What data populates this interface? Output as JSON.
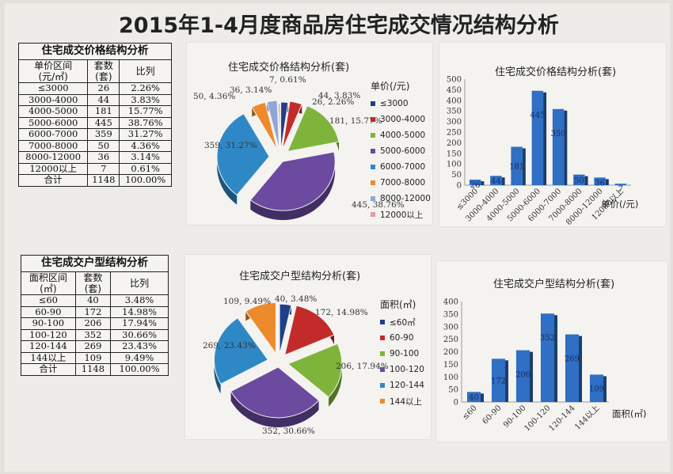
{
  "title": "2015年1-4月度商品房住宅成交情况结构分析",
  "tables": [
    {
      "title": "住宅成交价格结构分析",
      "headers": [
        [
          "单价区间",
          "(元/㎡)"
        ],
        [
          "套数",
          "(套)"
        ],
        [
          "比列",
          ""
        ]
      ],
      "rows": [
        [
          "≤3000",
          "26",
          "2.26%"
        ],
        [
          "3000-4000",
          "44",
          "3.83%"
        ],
        [
          "4000-5000",
          "181",
          "15.77%"
        ],
        [
          "5000-6000",
          "445",
          "38.76%"
        ],
        [
          "6000-7000",
          "359",
          "31.27%"
        ],
        [
          "7000-8000",
          "50",
          "4.36%"
        ],
        [
          "8000-12000",
          "36",
          "3.14%"
        ],
        [
          "12000以上",
          "7",
          "0.61%"
        ],
        [
          "合计",
          "1148",
          "100.00%"
        ]
      ]
    },
    {
      "title": "住宅成交户型结构分析",
      "headers": [
        [
          "面积区间",
          "(㎡)"
        ],
        [
          "套数",
          "(套)"
        ],
        [
          "比列",
          ""
        ]
      ],
      "rows": [
        [
          "≤60",
          "40",
          "3.48%"
        ],
        [
          "60-90",
          "172",
          "14.98%"
        ],
        [
          "90-100",
          "206",
          "17.94%"
        ],
        [
          "100-120",
          "352",
          "30.66%"
        ],
        [
          "120-144",
          "269",
          "23.43%"
        ],
        [
          "144以上",
          "109",
          "9.49%"
        ],
        [
          "合计",
          "1148",
          "100.00%"
        ]
      ]
    }
  ],
  "chart_data": [
    {
      "type": "pie",
      "title": "住宅成交价格结构分析(套)",
      "legend_title": "单价(/元)",
      "categories": [
        "≤3000",
        "3000-4000",
        "4000-5000",
        "5000-6000",
        "6000-7000",
        "7000-8000",
        "8000-12000",
        "12000以上"
      ],
      "values": [
        26,
        44,
        181,
        445,
        359,
        50,
        36,
        7
      ],
      "percent_labels": [
        "26, 2.26%",
        "44, 3.83%",
        "181, 15.77%",
        "445, 38.76%",
        "359, 31.27%",
        "50, 4.36%",
        "36, 3.14%",
        "7, 0.61%"
      ],
      "colors": [
        "#1f3f8a",
        "#c32b2b",
        "#7fb43b",
        "#6b4aa0",
        "#2f88c6",
        "#ec8a2c",
        "#8fa6d8",
        "#e39c9c"
      ],
      "legend": "right"
    },
    {
      "type": "bar",
      "title": "住宅成交价格结构分析(套)",
      "categories": [
        "≤3000",
        "3000-4000",
        "4000-5000",
        "5000-6000",
        "6000-7000",
        "7000-8000",
        "8000-12000",
        "12000以上"
      ],
      "values": [
        26,
        44,
        181,
        445,
        359,
        50,
        36,
        7
      ],
      "data_labels": [
        "26",
        "44",
        "181",
        "445",
        "359",
        "50",
        "36",
        "7"
      ],
      "xlabel": "单价(/元)",
      "ylim": [
        0,
        500
      ],
      "yticks": [
        0,
        50,
        100,
        150,
        200,
        250,
        300,
        350,
        400,
        450,
        500
      ],
      "color": "#2f6fc4"
    },
    {
      "type": "pie",
      "title": "住宅成交户型结构分析(套)",
      "legend_title": "面积(㎡)",
      "categories": [
        "≤60㎡",
        "60-90",
        "90-100",
        "100-120",
        "120-144",
        "144以上"
      ],
      "values": [
        40,
        172,
        206,
        352,
        269,
        109
      ],
      "percent_labels": [
        "40, 3.48%",
        "172, 14.98%",
        "206, 17.94%",
        "352, 30.66%",
        "269, 23.43%",
        "109, 9.49%"
      ],
      "colors": [
        "#1f3f8a",
        "#c32b2b",
        "#7fb43b",
        "#6b4aa0",
        "#2f88c6",
        "#ec8a2c"
      ],
      "legend": "right"
    },
    {
      "type": "bar",
      "title": "住宅成交户型结构分析(套)",
      "categories": [
        "≤60",
        "60-90",
        "90-100",
        "100-120",
        "120-144",
        "144以上"
      ],
      "values": [
        40,
        172,
        206,
        352,
        269,
        109
      ],
      "data_labels": [
        "40",
        "172",
        "206",
        "352",
        "269",
        "109"
      ],
      "xlabel": "面积(㎡)",
      "ylim": [
        0,
        400
      ],
      "yticks": [
        0,
        50,
        100,
        150,
        200,
        250,
        300,
        350,
        400
      ],
      "color": "#2f6fc4"
    }
  ]
}
